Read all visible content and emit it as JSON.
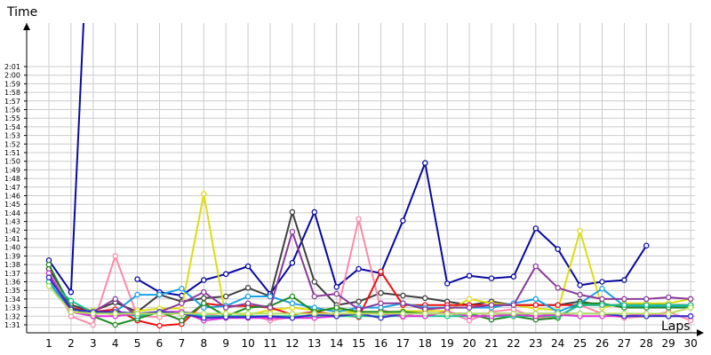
{
  "chart_data": {
    "type": "line",
    "ylabel": "Time",
    "xlabel": "Laps",
    "x": [
      1,
      2,
      3,
      4,
      5,
      6,
      7,
      8,
      9,
      10,
      11,
      12,
      13,
      14,
      15,
      16,
      17,
      18,
      19,
      20,
      21,
      22,
      23,
      24,
      25,
      26,
      27,
      28,
      29,
      30
    ],
    "xlim": [
      0,
      30
    ],
    "ylim_seconds": [
      90,
      124
    ],
    "grid": true,
    "y_tick_labels": [
      "1:31",
      "1:32",
      "1:33",
      "1:34",
      "1:35",
      "1:36",
      "1:37",
      "1:38",
      "1:39",
      "1:40",
      "1:41",
      "1:42",
      "1:43",
      "1:44",
      "1:45",
      "1:46",
      "1:47",
      "1:48",
      "1:49",
      "1:50",
      "1:51",
      "1:52",
      "1:53",
      "1:54",
      "1:55",
      "1:56",
      "1:57",
      "1:58",
      "1:59",
      "2:00",
      "2:01"
    ],
    "series": [
      {
        "color": "#0a0aa0",
        "values": [
          98.5,
          94.8,
          150,
          null,
          96.3,
          94.8,
          94.4,
          96.2,
          96.9,
          97.8,
          94.6,
          98.2,
          104.1,
          95.4,
          97.5,
          97.0,
          103.1,
          109.8,
          95.8,
          96.7,
          96.4,
          96.6,
          102.2,
          99.8,
          95.6,
          96.0,
          96.2,
          100.2,
          null,
          null
        ]
      },
      {
        "color": "#404040",
        "values": [
          97.5,
          93.3,
          92.6,
          93.6,
          92.5,
          94.5,
          93.7,
          94.1,
          94.3,
          95.3,
          94.3,
          104.1,
          96.0,
          93.3,
          93.7,
          94.7,
          94.4,
          94.1,
          93.7,
          93.3,
          93.7,
          93.3,
          93.3,
          93.3,
          93.7,
          93.3,
          93.3,
          93.3,
          93.3,
          93.3
        ]
      },
      {
        "color": "#ff88aa",
        "values": [
          97.0,
          92.0,
          91.0,
          99.0,
          92.0,
          91.9,
          92.5,
          92.3,
          91.9,
          92.2,
          91.5,
          91.9,
          91.8,
          92.1,
          103.3,
          92.8,
          91.9,
          92.7,
          92.5,
          91.5,
          92.5,
          92.8,
          91.8,
          92.0,
          93.3,
          92.3,
          91.8,
          92.0,
          92.5,
          91.5
        ]
      },
      {
        "color": "#dddd10",
        "values": [
          95.9,
          92.7,
          92.7,
          92.1,
          92.6,
          92.9,
          92.9,
          106.2,
          91.8,
          92.2,
          92.7,
          93.0,
          92.7,
          92.8,
          92.3,
          92.3,
          92.6,
          92.6,
          92.6,
          94.0,
          93.5,
          93.3,
          92.9,
          92.7,
          101.9,
          93.0,
          93.5,
          93.5,
          93.5,
          94.0
        ]
      },
      {
        "color": "#ee1010",
        "values": [
          96.5,
          93.0,
          92.5,
          92.8,
          91.5,
          90.9,
          91.1,
          93.5,
          93.2,
          93.2,
          93.0,
          92.2,
          92.5,
          92.2,
          91.9,
          97.2,
          93.3,
          93.3,
          93.3,
          93.3,
          93.3,
          93.3,
          93.3,
          93.3,
          93.3,
          93.3,
          93.3,
          93.3,
          93.3,
          93.3
        ]
      },
      {
        "color": "#1aa0e8",
        "values": [
          96.0,
          92.5,
          92.3,
          92.5,
          94.5,
          94.5,
          95.2,
          93.0,
          93.2,
          94.3,
          94.3,
          93.5,
          93.0,
          92.5,
          93.0,
          93.0,
          93.5,
          93.0,
          93.0,
          93.0,
          93.0,
          93.5,
          94.0,
          92.5,
          93.5,
          95.2,
          93.2,
          93.2,
          93.2,
          93.2
        ]
      },
      {
        "color": "#208a20",
        "values": [
          98.0,
          93.0,
          92.0,
          91.0,
          91.7,
          92.5,
          91.5,
          93.5,
          92.0,
          93.0,
          93.2,
          94.3,
          92.5,
          93.0,
          92.5,
          92.5,
          92.5,
          92.3,
          92.3,
          92.3,
          91.6,
          92.0,
          91.6,
          91.8,
          93.5,
          93.5,
          93.0,
          93.0,
          93.0,
          93.0
        ]
      },
      {
        "color": "#8a3a9a",
        "values": [
          97.0,
          92.8,
          92.5,
          94.0,
          92.0,
          92.5,
          93.5,
          94.8,
          93.0,
          93.5,
          93.0,
          101.8,
          94.3,
          94.6,
          92.8,
          93.5,
          93.5,
          92.8,
          93.0,
          93.0,
          93.3,
          93.3,
          97.8,
          95.3,
          94.5,
          94.0,
          94.0,
          94.0,
          94.2,
          94.0
        ]
      },
      {
        "color": "#18c090",
        "values": [
          96.0,
          93.8,
          92.4,
          92.4,
          92.0,
          92.5,
          92.5,
          92.0,
          92.0,
          92.0,
          92.0,
          92.0,
          92.0,
          92.0,
          92.0,
          92.0,
          92.0,
          92.0,
          92.0,
          92.0,
          92.0,
          92.0,
          92.0,
          92.0,
          93.3,
          93.3,
          93.3,
          93.3,
          93.3,
          93.3
        ]
      },
      {
        "color": "#e030e0",
        "values": [
          97.0,
          92.5,
          92.0,
          92.0,
          92.3,
          92.5,
          92.5,
          91.5,
          91.8,
          91.8,
          91.8,
          91.8,
          91.8,
          92.0,
          92.3,
          92.3,
          92.0,
          92.0,
          92.5,
          92.0,
          92.0,
          92.2,
          92.0,
          92.2,
          92.0,
          92.0,
          92.0,
          92.3,
          92.0,
          92.0
        ]
      },
      {
        "color": "#3030c8",
        "values": [
          96.5,
          92.8,
          92.5,
          92.5,
          92.3,
          92.5,
          92.3,
          91.8,
          91.9,
          91.9,
          92.0,
          91.8,
          92.2,
          92.0,
          92.3,
          91.8,
          92.3,
          92.3,
          92.3,
          92.3,
          92.3,
          92.3,
          92.3,
          92.3,
          92.3,
          92.3,
          92.0,
          92.0,
          92.0,
          92.0
        ]
      },
      {
        "color": "#b8e060",
        "values": [
          95.5,
          92.5,
          92.3,
          92.3,
          92.3,
          92.3,
          92.3,
          92.3,
          92.3,
          92.3,
          92.3,
          92.3,
          92.3,
          92.3,
          92.3,
          92.3,
          92.3,
          92.3,
          92.3,
          92.3,
          92.3,
          92.3,
          92.3,
          92.3,
          92.3,
          92.3,
          92.3,
          92.3,
          92.3,
          93.0
        ]
      }
    ]
  }
}
